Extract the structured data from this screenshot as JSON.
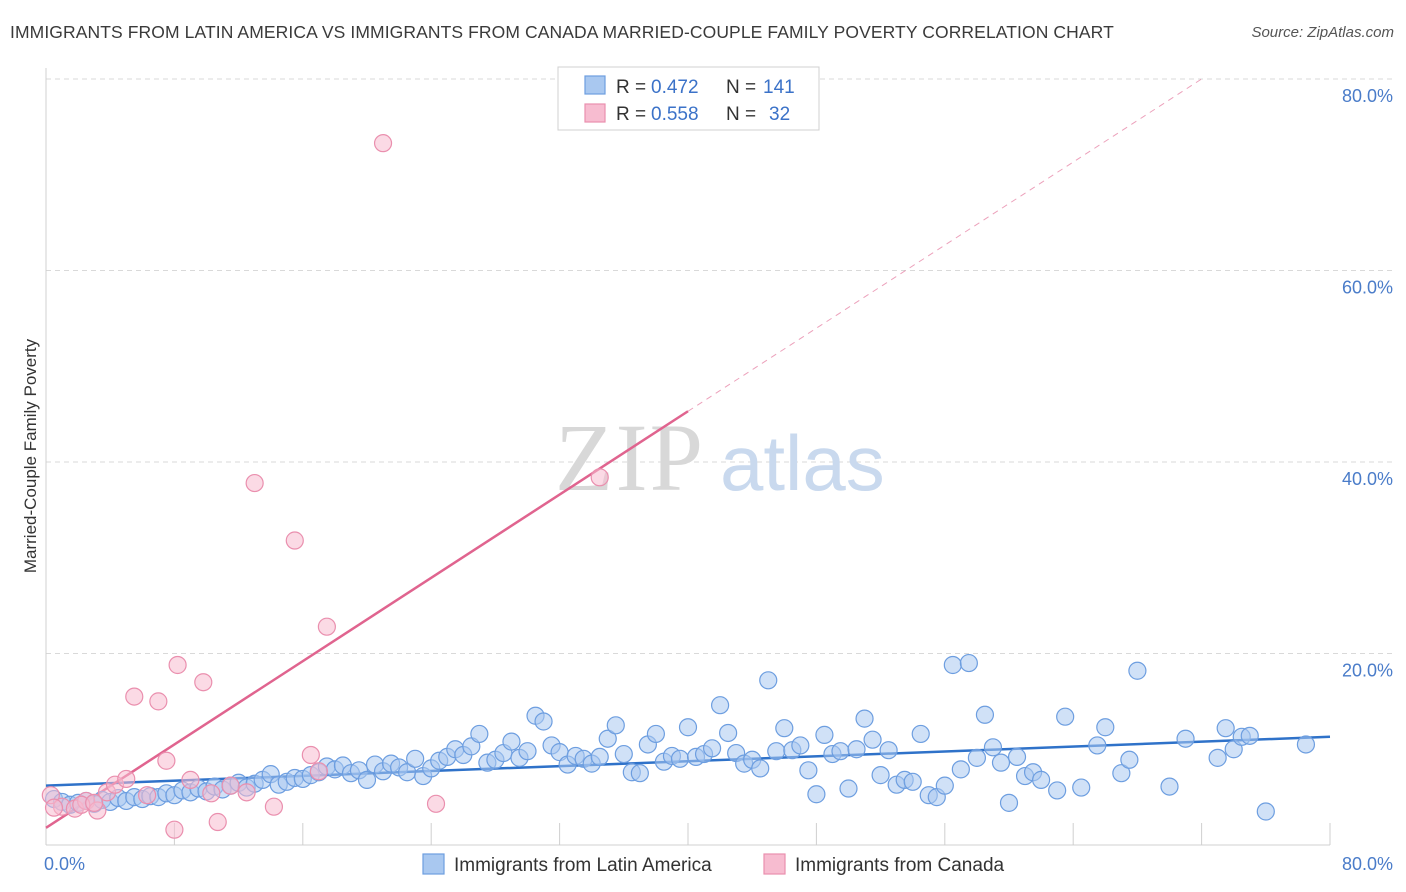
{
  "title": "IMMIGRANTS FROM LATIN AMERICA VS IMMIGRANTS FROM CANADA MARRIED-COUPLE FAMILY POVERTY CORRELATION CHART",
  "source": "Source: ZipAtlas.com",
  "watermark": {
    "zip": "ZIP",
    "atlas": "atlas"
  },
  "colors": {
    "blue_fill": "#a9c8f0",
    "blue_stroke": "#6d9ee0",
    "blue_line": "#2f72c9",
    "pink_fill": "#f7bcd0",
    "pink_stroke": "#ea8fae",
    "pink_line": "#e0648f",
    "grid": "#d9d9d9",
    "tick_text": "#4a7cc9"
  },
  "legend": {
    "r_label": "R =",
    "n_label": "N =",
    "series": [
      {
        "r": "0.472",
        "n": "141"
      },
      {
        "r": "0.558",
        "n": "32"
      }
    ]
  },
  "chart_data": {
    "type": "scatter",
    "title": "IMMIGRANTS FROM LATIN AMERICA VS IMMIGRANTS FROM CANADA MARRIED-COUPLE FAMILY POVERTY CORRELATION CHART",
    "xlabel": "",
    "ylabel": "Married-Couple Family Poverty",
    "xlim": [
      0,
      80
    ],
    "ylim": [
      0,
      80
    ],
    "x_tick_labels": [
      "0.0%",
      "80.0%"
    ],
    "y_ticks": [
      20,
      40,
      60,
      80
    ],
    "y_tick_labels": [
      "20.0%",
      "40.0%",
      "60.0%",
      "80.0%"
    ],
    "grid": true,
    "legend_position": "top-center",
    "series": [
      {
        "name": "Immigrants from Latin America",
        "color": "#a9c8f0",
        "trend": {
          "x": [
            0,
            80
          ],
          "y": [
            6.2,
            11.3
          ]
        },
        "points": [
          [
            0.5,
            4.8
          ],
          [
            1,
            4.5
          ],
          [
            1.5,
            4.2
          ],
          [
            2,
            4.4
          ],
          [
            2.5,
            4.6
          ],
          [
            3,
            4.3
          ],
          [
            3.5,
            4.7
          ],
          [
            4,
            4.5
          ],
          [
            4.5,
            4.9
          ],
          [
            5,
            4.6
          ],
          [
            5.5,
            5.0
          ],
          [
            6,
            4.8
          ],
          [
            6.5,
            5.1
          ],
          [
            7,
            5.0
          ],
          [
            7.5,
            5.4
          ],
          [
            8,
            5.2
          ],
          [
            8.5,
            5.7
          ],
          [
            9,
            5.5
          ],
          [
            9.5,
            5.9
          ],
          [
            10,
            5.6
          ],
          [
            10.5,
            6.1
          ],
          [
            11,
            5.8
          ],
          [
            11.5,
            6.2
          ],
          [
            12,
            6.5
          ],
          [
            12.5,
            6.0
          ],
          [
            13,
            6.4
          ],
          [
            13.5,
            6.8
          ],
          [
            14,
            7.4
          ],
          [
            14.5,
            6.3
          ],
          [
            15,
            6.6
          ],
          [
            15.5,
            7.0
          ],
          [
            16,
            6.9
          ],
          [
            16.5,
            7.3
          ],
          [
            17,
            7.6
          ],
          [
            17.5,
            8.2
          ],
          [
            18,
            7.9
          ],
          [
            18.5,
            8.3
          ],
          [
            19,
            7.5
          ],
          [
            19.5,
            7.8
          ],
          [
            20,
            6.8
          ],
          [
            20.5,
            8.4
          ],
          [
            21,
            7.7
          ],
          [
            21.5,
            8.5
          ],
          [
            22,
            8.1
          ],
          [
            22.5,
            7.6
          ],
          [
            23,
            9.0
          ],
          [
            23.5,
            7.2
          ],
          [
            24,
            8.0
          ],
          [
            24.5,
            8.8
          ],
          [
            25,
            9.2
          ],
          [
            25.5,
            10.0
          ],
          [
            26,
            9.4
          ],
          [
            26.5,
            10.3
          ],
          [
            27,
            11.6
          ],
          [
            27.5,
            8.6
          ],
          [
            28,
            8.9
          ],
          [
            28.5,
            9.6
          ],
          [
            29,
            10.8
          ],
          [
            29.5,
            9.1
          ],
          [
            30,
            9.8
          ],
          [
            30.5,
            13.5
          ],
          [
            31,
            12.9
          ],
          [
            31.5,
            10.4
          ],
          [
            32,
            9.7
          ],
          [
            32.5,
            8.4
          ],
          [
            33,
            9.3
          ],
          [
            33.5,
            9.0
          ],
          [
            34,
            8.5
          ],
          [
            34.5,
            9.2
          ],
          [
            35,
            11.1
          ],
          [
            35.5,
            12.5
          ],
          [
            36,
            9.5
          ],
          [
            36.5,
            7.6
          ],
          [
            37,
            7.5
          ],
          [
            37.5,
            10.5
          ],
          [
            38,
            11.6
          ],
          [
            38.5,
            8.7
          ],
          [
            39,
            9.3
          ],
          [
            39.5,
            9.0
          ],
          [
            40,
            12.3
          ],
          [
            40.5,
            9.2
          ],
          [
            41,
            9.5
          ],
          [
            41.5,
            10.1
          ],
          [
            42,
            14.6
          ],
          [
            42.5,
            11.7
          ],
          [
            43,
            9.6
          ],
          [
            43.5,
            8.5
          ],
          [
            44,
            8.9
          ],
          [
            44.5,
            8.0
          ],
          [
            45,
            17.2
          ],
          [
            45.5,
            9.8
          ],
          [
            46,
            12.2
          ],
          [
            46.5,
            9.9
          ],
          [
            47,
            10.4
          ],
          [
            47.5,
            7.8
          ],
          [
            48,
            5.3
          ],
          [
            48.5,
            11.5
          ],
          [
            49,
            9.5
          ],
          [
            49.5,
            9.8
          ],
          [
            50,
            5.9
          ],
          [
            50.5,
            10.0
          ],
          [
            51,
            13.2
          ],
          [
            51.5,
            11.0
          ],
          [
            52,
            7.3
          ],
          [
            52.5,
            9.9
          ],
          [
            53,
            6.3
          ],
          [
            53.5,
            6.8
          ],
          [
            54,
            6.6
          ],
          [
            54.5,
            11.6
          ],
          [
            55,
            5.2
          ],
          [
            55.5,
            5.0
          ],
          [
            56,
            6.2
          ],
          [
            56.5,
            18.8
          ],
          [
            57,
            7.9
          ],
          [
            57.5,
            19.0
          ],
          [
            58,
            9.1
          ],
          [
            58.5,
            13.6
          ],
          [
            59,
            10.2
          ],
          [
            59.5,
            8.6
          ],
          [
            60,
            4.4
          ],
          [
            60.5,
            9.2
          ],
          [
            61,
            7.2
          ],
          [
            61.5,
            7.6
          ],
          [
            62,
            6.8
          ],
          [
            63,
            5.7
          ],
          [
            63.5,
            13.4
          ],
          [
            64.5,
            6.0
          ],
          [
            65.5,
            10.4
          ],
          [
            66,
            12.3
          ],
          [
            67,
            7.5
          ],
          [
            67.5,
            8.9
          ],
          [
            68,
            18.2
          ],
          [
            70,
            6.1
          ],
          [
            71,
            11.1
          ],
          [
            73,
            9.1
          ],
          [
            73.5,
            12.2
          ],
          [
            74,
            10.0
          ],
          [
            74.5,
            11.3
          ],
          [
            75,
            11.4
          ],
          [
            76,
            3.5
          ],
          [
            78.5,
            10.5
          ]
        ]
      },
      {
        "name": "Immigrants from Canada",
        "color": "#f7bcd0",
        "trend": {
          "x": [
            0,
            40
          ],
          "y": [
            1.8,
            45.3
          ]
        },
        "trend_extension": {
          "x": [
            40,
            72
          ],
          "y": [
            45.3,
            80
          ]
        },
        "points": [
          [
            0.3,
            5.2
          ],
          [
            1,
            4.0
          ],
          [
            1.8,
            3.8
          ],
          [
            2.5,
            4.6
          ],
          [
            3.2,
            3.6
          ],
          [
            3.8,
            5.5
          ],
          [
            4.3,
            6.3
          ],
          [
            5,
            6.9
          ],
          [
            5.5,
            15.5
          ],
          [
            6.3,
            5.2
          ],
          [
            7,
            15.0
          ],
          [
            7.5,
            8.8
          ],
          [
            8,
            1.6
          ],
          [
            8.2,
            18.8
          ],
          [
            9,
            6.8
          ],
          [
            9.8,
            17.0
          ],
          [
            10.3,
            5.4
          ],
          [
            10.7,
            2.4
          ],
          [
            11.5,
            6.2
          ],
          [
            12.5,
            5.5
          ],
          [
            13,
            37.8
          ],
          [
            14.2,
            4.0
          ],
          [
            15.5,
            31.8
          ],
          [
            16.5,
            9.4
          ],
          [
            17,
            7.7
          ],
          [
            17.5,
            22.8
          ],
          [
            21,
            73.3
          ],
          [
            24.3,
            4.3
          ],
          [
            34.5,
            38.4
          ],
          [
            2.2,
            4.2
          ],
          [
            3,
            4.4
          ],
          [
            0.5,
            3.9
          ]
        ]
      }
    ]
  }
}
